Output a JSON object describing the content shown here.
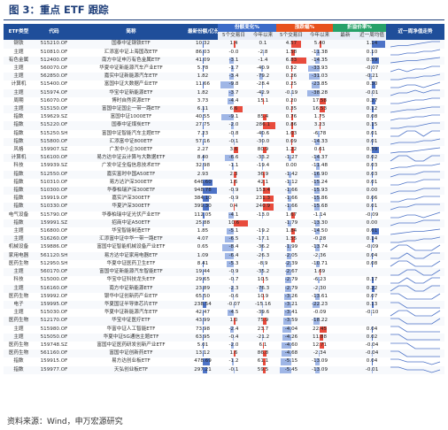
{
  "title": "图 3：重点 ETF 跟踪",
  "source": "资料来源：Wind，申万宏源研究",
  "headers": {
    "etf_type": "ETF类型",
    "code": "代码",
    "name": "简称",
    "latest_share": "最新份额/亿份",
    "share_change": "份额变化%",
    "premium": "涨跌幅%",
    "discount": "折溢价率%",
    "trend": "近一周净值走势",
    "sub_5d": "5个交易日",
    "sub_ytd": "今年以来",
    "sub_5d_b": "5个交易日",
    "sub_ytd_b": "今年以来",
    "sub_latest": "最新",
    "sub_avg": "近一周均值"
  },
  "rows": [
    {
      "type": "钢铁",
      "code": "515210.OF",
      "name": "国泰中证钢铁ETF",
      "share": "10.32",
      "sc5": "1.4",
      "scy": "0.1",
      "zd5": "4.57",
      "zdy": "5.40",
      "disc": "",
      "avg": "1.14",
      "spark": [
        2,
        3,
        3,
        4,
        5,
        6,
        6
      ]
    },
    {
      "type": "主题",
      "code": "510810.OF",
      "name": "汇添富中证上海国改ETF",
      "share": "86.03",
      "sc5": "-0.0",
      "scy": "-2.8",
      "zd5": "1.58",
      "zdy": "-11.38",
      "disc": "",
      "avg": "0.10",
      "spark": [
        3,
        3,
        4,
        4,
        5,
        5,
        6
      ]
    },
    {
      "type": "有色金属",
      "code": "512400.OF",
      "name": "南方中证申万有色金属ETF",
      "share": "41.09",
      "sc5": "-3.1",
      "scy": "-1.4",
      "zd5": "6.83",
      "zdy": "-14.35",
      "disc": "",
      "avg": "0.59",
      "spark": [
        2,
        3,
        4,
        4,
        5,
        6,
        7
      ]
    },
    {
      "type": "主题",
      "code": "560070.OF",
      "name": "华夏中证新能源汽车产业ETF",
      "share": "5.78",
      "sc5": "-1.7",
      "scy": "-40.9",
      "zd5": "0.52",
      "zdy": "-33.93",
      "disc": "",
      "avg": "-0.07",
      "spark": [
        3,
        4,
        3,
        4,
        4,
        5,
        5
      ]
    },
    {
      "type": "主题",
      "code": "562850.OF",
      "name": "嘉实中证新能源汽车ETF",
      "share": "1.82",
      "sc5": "-3.4",
      "scy": "-79.2",
      "zd5": "0.26",
      "zdy": "-31.03",
      "disc": "",
      "avg": "-0.21",
      "spark": [
        3,
        3,
        4,
        4,
        5,
        5,
        6
      ]
    },
    {
      "type": "计算机",
      "code": "515400.OF",
      "name": "富国中证大数据产业ETF",
      "share": "11.66",
      "sc5": "-9.8",
      "scy": "-28.4",
      "zd5": "0.25",
      "zdy": "-23.85",
      "disc": "",
      "avg": "0.30",
      "spark": [
        4,
        4,
        5,
        5,
        4,
        5,
        6
      ]
    },
    {
      "type": "主题",
      "code": "515974.OF",
      "name": "华宝中证新能源ETF",
      "share": "1.82",
      "sc5": "-3.7",
      "scy": "-42.9",
      "zd5": "-0.19",
      "zdy": "-38.28",
      "disc": "",
      "avg": "-0.01",
      "spark": [
        3,
        4,
        4,
        5,
        4,
        5,
        5
      ]
    },
    {
      "type": "周期",
      "code": "516070.OF",
      "name": "博时自然资源ETF",
      "share": "3.73",
      "sc5": "-4.4",
      "scy": "15.1",
      "zd5": "0.20",
      "zdy": "17.58",
      "disc": "",
      "avg": "0.27",
      "spark": [
        3,
        3,
        4,
        5,
        5,
        6,
        6
      ]
    },
    {
      "type": "主题",
      "code": "515150.OF",
      "name": "富国中证国企一带一路ETF",
      "share": "6.11",
      "sc5": "6.6",
      "scy": "",
      "zd5": "0.35",
      "zdy": "16.53",
      "disc": "",
      "avg": "0.12",
      "spark": [
        2,
        3,
        4,
        4,
        5,
        6,
        6
      ]
    },
    {
      "type": "指数",
      "code": "159629.SZ",
      "name": "富国中证1000ETF",
      "share": "40.55",
      "sc5": "-9.1",
      "scy": "85.4",
      "zd5": "0.76",
      "zdy": "1.75",
      "disc": "",
      "avg": "0.08",
      "spark": [
        3,
        4,
        4,
        5,
        5,
        6,
        6
      ]
    },
    {
      "type": "指数",
      "code": "515220.OF",
      "name": "国泰中证煤炭ETF",
      "share": "27.75",
      "sc5": "-2.0",
      "scy": "286.1",
      "zd5": "0.86",
      "zdy": "3.23",
      "disc": "",
      "avg": "0.15",
      "spark": [
        3,
        3,
        4,
        4,
        5,
        6,
        6
      ]
    },
    {
      "type": "指数",
      "code": "515250.SH",
      "name": "富国中证智能汽车主题ETF",
      "share": "7.23",
      "sc5": "-0.8",
      "scy": "-40.6",
      "zd5": "1.03",
      "zdy": "-6.78",
      "disc": "",
      "avg": "0.01",
      "spark": [
        4,
        4,
        5,
        5,
        4,
        5,
        5
      ]
    },
    {
      "type": "指数",
      "code": "515800.OF",
      "name": "汇添富中证800ETF",
      "share": "57.16",
      "sc5": "-0.1",
      "scy": "-30.0",
      "zd5": "0.09",
      "zdy": "-14.33",
      "disc": "",
      "avg": "0.01",
      "spark": [
        3,
        4,
        4,
        4,
        5,
        5,
        6
      ]
    },
    {
      "type": "风格",
      "code": "159907.SZ",
      "name": "广发中小企300ETF",
      "share": "2.27",
      "sc5": "3.6",
      "scy": "80.9",
      "zd5": "1.22",
      "zdy": "0.61",
      "disc": "",
      "avg": "0.59",
      "spark": [
        2,
        3,
        3,
        4,
        5,
        6,
        7
      ]
    },
    {
      "type": "计算机",
      "code": "516100.OF",
      "name": "易方达中证云计算与大数据ETF",
      "share": "8.40",
      "sc5": "-6.6",
      "scy": "-33.2",
      "zd5": "-1.27",
      "zdy": "-14.37",
      "disc": "",
      "avg": "0.02",
      "spark": [
        4,
        5,
        5,
        4,
        4,
        5,
        5
      ]
    },
    {
      "type": "科技",
      "code": "159939.SZ",
      "name": "广发中证全指信息技术ETF",
      "share": "32.98",
      "sc5": "-1.1",
      "scy": "-19.4",
      "zd5": "0.00",
      "zdy": "-11.48",
      "disc": "",
      "avg": "0.03",
      "spark": [
        3,
        4,
        4,
        5,
        5,
        5,
        6
      ]
    },
    {
      "type": "指数",
      "code": "512550.OF",
      "name": "嘉实富时中国A50ETF",
      "share": "2.93",
      "sc5": "2.3",
      "scy": "36.9",
      "zd5": "-1.42",
      "zdy": "-16.90",
      "disc": "",
      "avg": "0.03",
      "spark": [
        3,
        4,
        4,
        4,
        5,
        5,
        5
      ]
    },
    {
      "type": "指数",
      "code": "510310.OF",
      "name": "易方达沪深300ETF",
      "share": "646.60",
      "sc5": "1.6",
      "scy": "42.1",
      "zd5": "-1.12",
      "zdy": "-15.24",
      "disc": "",
      "avg": "0.01",
      "spark": [
        3,
        3,
        4,
        4,
        5,
        5,
        5
      ]
    },
    {
      "type": "指数",
      "code": "510300.OF",
      "name": "华泰柏瑞沪深300ETF",
      "share": "948.78",
      "sc5": "-0.9",
      "scy": "153.4",
      "zd5": "-1.66",
      "zdy": "-15.93",
      "disc": "",
      "avg": "0.00",
      "spark": [
        3,
        4,
        4,
        4,
        5,
        5,
        5
      ]
    },
    {
      "type": "指数",
      "code": "159919.OF",
      "name": "嘉实沪深300ETF",
      "share": "384.10",
      "sc5": "-0.9",
      "scy": "231.3",
      "zd5": "-1.66",
      "zdy": "-15.86",
      "disc": "",
      "avg": "0.06",
      "spark": [
        3,
        3,
        4,
        4,
        5,
        5,
        5
      ]
    },
    {
      "type": "指数",
      "code": "510330.OF",
      "name": "华夏沪深300ETF",
      "share": "399.30",
      "sc5": "0.4",
      "scy": "240.9",
      "zd5": "-1.66",
      "zdy": "-15.68",
      "disc": "",
      "avg": "0.01",
      "spark": [
        3,
        4,
        4,
        5,
        5,
        5,
        5
      ]
    },
    {
      "type": "电气设备",
      "code": "515790.OF",
      "name": "华泰柏瑞中证光伏产业ETF",
      "share": "112.05",
      "sc5": "-4.1",
      "scy": "-13.0",
      "zd5": "1.67",
      "zdy": "-1.14",
      "disc": "",
      "avg": "-0.09",
      "spark": [
        4,
        4,
        5,
        5,
        4,
        5,
        6
      ]
    },
    {
      "type": "指数",
      "code": "159991.SZ",
      "name": "招商中证A50ETF",
      "share": "25.88",
      "sc5": "10.6",
      "scy": "",
      "zd5": "-1.79",
      "zdy": "-13.30",
      "disc": "",
      "avg": "0.00",
      "spark": [
        3,
        4,
        4,
        4,
        5,
        5,
        5
      ]
    },
    {
      "type": "主题",
      "code": "516800.OF",
      "name": "华宝智能制造ETF",
      "share": "1.85",
      "sc5": "-5.1",
      "scy": "-19.2",
      "zd5": "1.84",
      "zdy": "-14.50",
      "disc": "",
      "avg": "0.61",
      "spark": [
        2,
        3,
        4,
        5,
        5,
        6,
        7
      ]
    },
    {
      "type": "主题",
      "code": "516260.OF",
      "name": "汇添富中证中华一带一路ETF",
      "share": "4.07",
      "sc5": "-6.5",
      "scy": "-17.1",
      "zd5": "1.55",
      "zdy": "-0.28",
      "disc": "",
      "avg": "0.14",
      "spark": [
        3,
        3,
        4,
        4,
        5,
        5,
        6
      ]
    },
    {
      "type": "机械设备",
      "code": "159886.OF",
      "name": "富国中证智能机械设备产业ETF",
      "share": "0.65",
      "sc5": "-8.4",
      "scy": "-36.2",
      "zd5": "-1.99",
      "zdy": "-13.74",
      "disc": "",
      "avg": "-0.09",
      "spark": [
        4,
        5,
        5,
        4,
        4,
        4,
        5
      ]
    },
    {
      "type": "家用电器",
      "code": "561120.SH",
      "name": "易方达中证家用电器ETF",
      "share": "1.09",
      "sc5": "-6.4",
      "scy": "-26.3",
      "zd5": "-2.05",
      "zdy": "-2.36",
      "disc": "",
      "avg": "0.04",
      "spark": [
        4,
        4,
        5,
        4,
        4,
        5,
        5
      ]
    },
    {
      "type": "医药生物",
      "code": "512950.SH",
      "name": "华夏中证医药卫生ETF",
      "share": "8.41",
      "sc5": "-5.3",
      "scy": "-8.9",
      "zd5": "-2.39",
      "zdy": "-10.71",
      "disc": "",
      "avg": "0.08",
      "spark": [
        4,
        5,
        5,
        4,
        4,
        4,
        5
      ]
    },
    {
      "type": "主题",
      "code": "560170.OF",
      "name": "富国中证新能源汽车智能ETF",
      "share": "19.44",
      "sc5": "-0.9",
      "scy": "-35.2",
      "zd5": "-2.67",
      "zdy": "1.69",
      "disc": "",
      "avg": "",
      "spark": [
        4,
        4,
        5,
        5,
        4,
        4,
        5
      ]
    },
    {
      "type": "科技",
      "code": "515000.OF",
      "name": "华宝中证科技龙头ETF",
      "share": "29.65",
      "sc5": "-0.7",
      "scy": "10.5",
      "zd5": "-2.79",
      "zdy": "-6.23",
      "disc": "",
      "avg": "0.17",
      "spark": [
        4,
        4,
        5,
        4,
        4,
        5,
        5
      ]
    },
    {
      "type": "主题",
      "code": "516160.OF",
      "name": "南方中证新能源ETF",
      "share": "23.89",
      "sc5": "-2.3",
      "scy": "-76.3",
      "zd5": "-2.79",
      "zdy": "-2.30",
      "disc": "",
      "avg": "0.22",
      "spark": [
        4,
        5,
        5,
        4,
        4,
        5,
        5
      ]
    },
    {
      "type": "医药生物",
      "code": "159992.OF",
      "name": "银华中证创新药产业ETF",
      "share": "65.50",
      "sc5": "-0.6",
      "scy": "10.9",
      "zd5": "-3.26",
      "zdy": "-13.61",
      "disc": "",
      "avg": "0.07",
      "spark": [
        5,
        5,
        4,
        4,
        4,
        4,
        5
      ]
    },
    {
      "type": "电子",
      "code": "159995.OF",
      "name": "华夏国证半导体芯片ETF",
      "share": "238.54",
      "sc5": "-0.07",
      "scy": "-15.16",
      "zd5": "-3.21",
      "zdy": "-22.23",
      "disc": "",
      "avg": "0.13",
      "spark": [
        5,
        5,
        4,
        4,
        4,
        4,
        4
      ]
    },
    {
      "type": "主题",
      "code": "515030.OF",
      "name": "华夏中证新能源汽车ETF",
      "share": "42.47",
      "sc5": "-4.5",
      "scy": "-39.6",
      "zd5": "-3.41",
      "zdy": "-0.09",
      "disc": "",
      "avg": "-0.10",
      "spark": [
        4,
        5,
        5,
        4,
        4,
        4,
        5
      ]
    },
    {
      "type": "医药生物",
      "code": "512170.OF",
      "name": "华宝中证医疗ETF",
      "share": "43.99",
      "sc5": "1.0",
      "scy": "75.9",
      "zd5": "-3.59",
      "zdy": "-18.22",
      "disc": "",
      "avg": "",
      "spark": [
        5,
        5,
        4,
        4,
        4,
        4,
        5
      ]
    },
    {
      "type": "主题",
      "code": "515980.OF",
      "name": "华富中证人工智能ETF",
      "share": "73.98",
      "sc5": "-2.4",
      "scy": "23.7",
      "zd5": "-4.04",
      "zdy": "22.45",
      "disc": "",
      "avg": "0.04",
      "spark": [
        5,
        5,
        4,
        4,
        4,
        4,
        4
      ]
    },
    {
      "type": "主题",
      "code": "515050.OF",
      "name": "华夏中证5G通信主题ETF",
      "share": "63.95",
      "sc5": "-0.4",
      "scy": "-21.2",
      "zd5": "-4.26",
      "zdy": "11.88",
      "disc": "",
      "avg": "0.02",
      "spark": [
        5,
        5,
        4,
        4,
        4,
        4,
        4
      ]
    },
    {
      "type": "医药生物",
      "code": "159748.SZ",
      "name": "富国中证医药研发创新产业ETF",
      "share": "5.01",
      "sc5": "-2.0",
      "scy": "6.1",
      "zd5": "-4.60",
      "zdy": "12.71",
      "disc": "",
      "avg": "-0.04",
      "spark": [
        5,
        5,
        5,
        4,
        4,
        4,
        4
      ]
    },
    {
      "type": "医药生物",
      "code": "561160.OF",
      "name": "富国中证创新药ETF",
      "share": "13.12",
      "sc5": "1.6",
      "scy": "86.8",
      "zd5": "-4.68",
      "zdy": "-2.34",
      "disc": "",
      "avg": "-0.04",
      "spark": [
        5,
        5,
        4,
        4,
        4,
        4,
        4
      ]
    },
    {
      "type": "指数",
      "code": "159915.OF",
      "name": "易方达创业板ETF",
      "share": "478.69",
      "sc5": "-1.2",
      "scy": "61.1",
      "zd5": "-5.15",
      "zdy": "-13.09",
      "disc": "",
      "avg": "0.04",
      "spark": [
        5,
        5,
        4,
        4,
        4,
        3,
        4
      ]
    },
    {
      "type": "指数",
      "code": "159977.OF",
      "name": "天弘创业板ETF",
      "share": "297.21",
      "sc5": "-0.1",
      "scy": "59.5",
      "zd5": "-5.45",
      "zdy": "-13.09",
      "disc": "",
      "avg": "-0.01",
      "spark": [
        5,
        5,
        4,
        4,
        4,
        3,
        4
      ]
    }
  ]
}
